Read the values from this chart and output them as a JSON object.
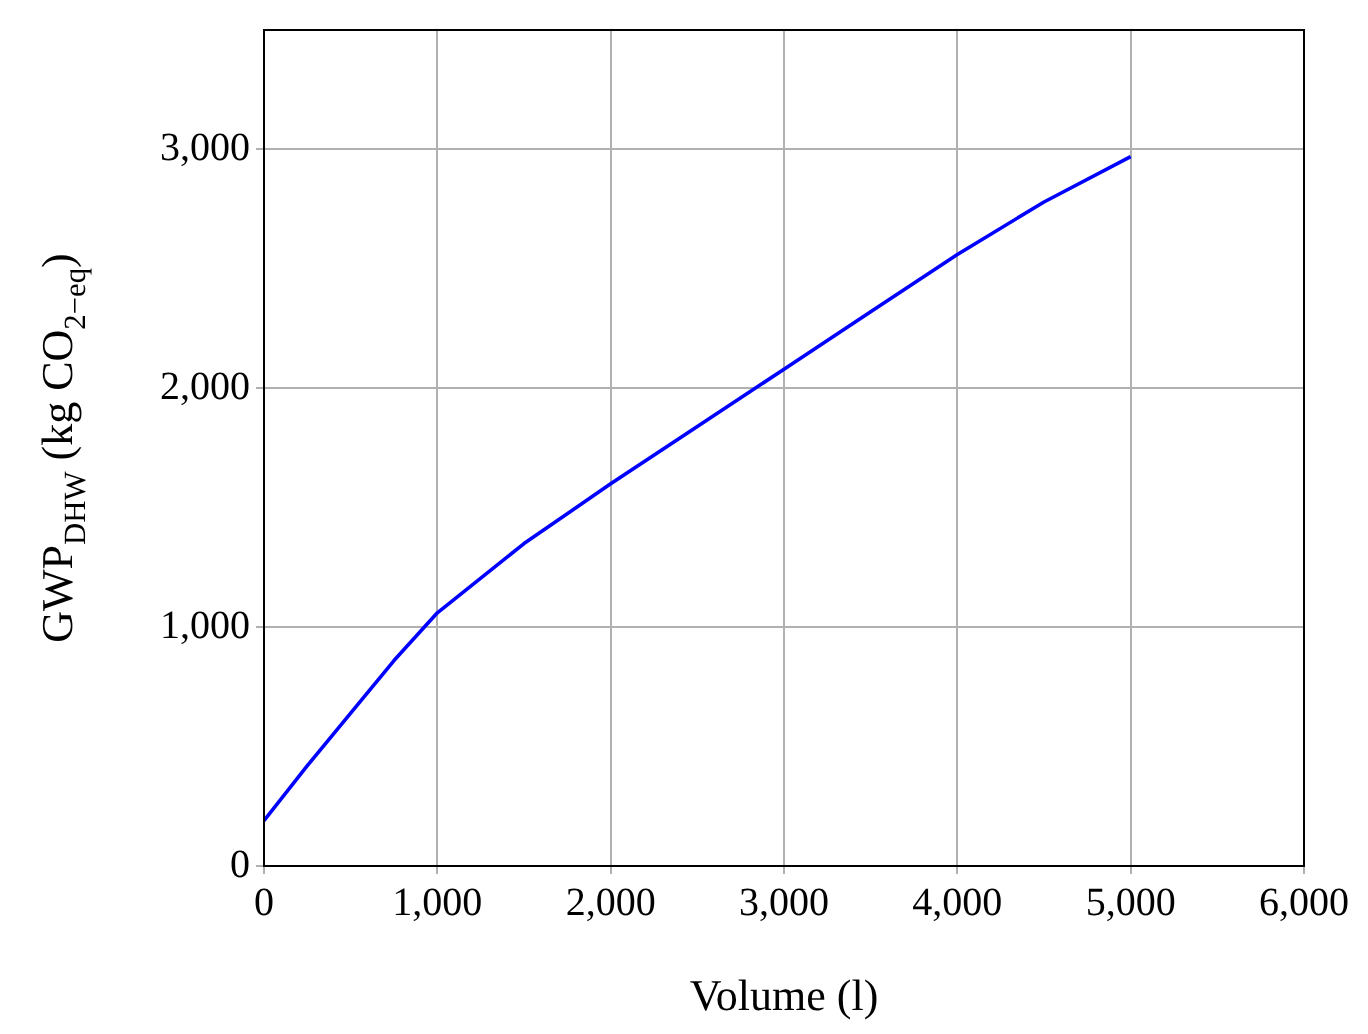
{
  "chart_data": {
    "type": "line",
    "xlabel": "Volume (l)",
    "ylabel": "GWP$_{DHW}$ (kg CO$_{2−eq}$)",
    "x": [
      0,
      250,
      500,
      750,
      1000,
      1500,
      2000,
      2500,
      3000,
      3500,
      4000,
      4500,
      5000
    ],
    "series": [
      {
        "color": "#0000ff",
        "values": [
          190,
          420,
          640,
          860,
          1060,
          1350,
          1600,
          1840,
          2080,
          2320,
          2560,
          2780,
          2970
        ]
      }
    ],
    "xlim": [
      0,
      6000
    ],
    "ylim": [
      0,
      3500
    ],
    "xticks": [
      0,
      {
        "value": 1000,
        "label": "1,000"
      },
      {
        "value": 2000,
        "label": "2,000"
      },
      {
        "value": 3000,
        "label": "3,000"
      },
      {
        "value": 4000,
        "label": "4,000"
      },
      {
        "value": 5000,
        "label": "5,000"
      },
      {
        "value": 6000,
        "label": "6,000"
      }
    ],
    "yticks": [
      0,
      {
        "value": 1000,
        "label": "1,000"
      },
      {
        "value": 2000,
        "label": "2,000"
      },
      {
        "value": 3000,
        "label": "3,000"
      }
    ],
    "grid": true,
    "legend": false,
    "marker": "none",
    "line_style": "solid"
  }
}
